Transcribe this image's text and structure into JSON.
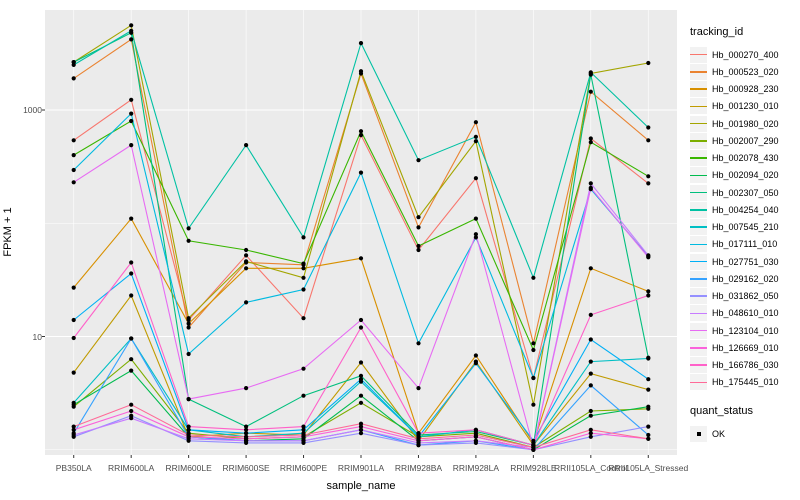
{
  "colors": {
    "panel_bg": "#EBEBEB",
    "grid_major": "#FFFFFF",
    "grid_minor": "#F7F7F7",
    "axis_text": "#4D4D4D",
    "tick_mark": "#333333",
    "point": "#000000",
    "legend_key_bg": "#F2F2F2"
  },
  "chart_data": {
    "type": "line",
    "xlabel": "sample_name",
    "ylabel": "FPKM + 1",
    "y_scale": "log10",
    "y_ticks": [
      10,
      1000
    ],
    "y_minor_ticks": [
      1,
      100
    ],
    "ylim": [
      0.9,
      7700
    ],
    "grid": true,
    "legend_position": "right",
    "legend_title": "tracking_id",
    "quant_legend": {
      "title": "quant_status",
      "items": [
        "OK"
      ]
    },
    "categories": [
      "PB350LA",
      "RRIM600LA",
      "RRIM600LE",
      "RRIM600SE",
      "RRIM600PE",
      "RRIM901LA",
      "RRIM928BA",
      "RRIM928LA",
      "RRIM928LE",
      "RRII105LA_Control",
      "RRII105LA_Stressed"
    ],
    "series": [
      {
        "name": "Hb_000270_400",
        "color": "#F8766D",
        "values": [
          540,
          1230,
          14,
          52,
          14.5,
          600,
          58,
          250,
          4.3,
          560,
          225
        ]
      },
      {
        "name": "Hb_000523_020",
        "color": "#EA8331",
        "values": [
          1900,
          4200,
          12,
          45,
          43,
          2100,
          92,
          780,
          8.7,
          1450,
          540
        ]
      },
      {
        "name": "Hb_000928_230",
        "color": "#D89000",
        "values": [
          27,
          110,
          13,
          40,
          40,
          49,
          1.4,
          6.8,
          1.15,
          40,
          25
        ]
      },
      {
        "name": "Hb_001230_010",
        "color": "#C09B00",
        "values": [
          4.8,
          23,
          1.3,
          1.4,
          1.35,
          5.9,
          1.2,
          6.0,
          1.1,
          4.7,
          3.4
        ]
      },
      {
        "name": "Hb_001980_020",
        "color": "#A3A500",
        "values": [
          2650,
          5600,
          14.5,
          46,
          33,
          2200,
          113,
          530,
          2.5,
          2100,
          2600
        ]
      },
      {
        "name": "Hb_002007_290",
        "color": "#7CAE00",
        "values": [
          2.4,
          6.3,
          1.4,
          1.25,
          1.3,
          2.6,
          1.3,
          1.4,
          1.05,
          2.2,
          2.3
        ]
      },
      {
        "name": "Hb_002078_430",
        "color": "#39B600",
        "values": [
          400,
          800,
          70,
          58,
          44,
          650,
          63,
          110,
          7.6,
          520,
          260
        ]
      },
      {
        "name": "Hb_002094_020",
        "color": "#00BB4E",
        "values": [
          2.5,
          5.0,
          1.3,
          1.2,
          1.25,
          3.0,
          1.2,
          1.3,
          1.0,
          2.0,
          2.4
        ]
      },
      {
        "name": "Hb_002307_050",
        "color": "#00BF7D",
        "values": [
          2650,
          4800,
          2.8,
          1.6,
          3.0,
          4.5,
          1.35,
          1.45,
          1.1,
          2050,
          6.5
        ]
      },
      {
        "name": "Hb_004254_040",
        "color": "#00C1A3",
        "values": [
          2500,
          5000,
          90,
          490,
          75,
          3900,
          360,
          580,
          33,
          2150,
          700
        ]
      },
      {
        "name": "Hb_007545_210",
        "color": "#00BFC4",
        "values": [
          2.6,
          9.6,
          1.5,
          1.3,
          1.4,
          4.0,
          1.3,
          1.5,
          1.1,
          6.0,
          6.4
        ]
      },
      {
        "name": "Hb_017111_010",
        "color": "#00BAE0",
        "values": [
          295,
          930,
          7,
          20,
          26,
          280,
          8.7,
          75,
          4.3,
          200,
          51
        ]
      },
      {
        "name": "Hb_027751_030",
        "color": "#00B0F6",
        "values": [
          14,
          36,
          1.5,
          1.4,
          1.5,
          4.2,
          1.3,
          5.8,
          1.2,
          9.4,
          4.2
        ]
      },
      {
        "name": "Hb_029162_020",
        "color": "#35A2FF",
        "values": [
          1.4,
          9.6,
          1.3,
          1.2,
          1.2,
          1.5,
          1.1,
          1.2,
          1.0,
          3.7,
          1.35
        ]
      },
      {
        "name": "Hb_031862_050",
        "color": "#9590FF",
        "values": [
          1.3,
          2.0,
          1.2,
          1.15,
          1.15,
          1.4,
          1.1,
          1.15,
          1.0,
          1.3,
          1.6
        ]
      },
      {
        "name": "Hb_048610_010",
        "color": "#C77CFF",
        "values": [
          1.35,
          1.9,
          1.25,
          1.2,
          1.2,
          1.5,
          1.15,
          1.2,
          1.05,
          225,
          52
        ]
      },
      {
        "name": "Hb_123104_010",
        "color": "#E76BF3",
        "values": [
          230,
          490,
          2.8,
          3.5,
          5.2,
          14,
          3.5,
          80,
          1.05,
          205,
          50
        ]
      },
      {
        "name": "Hb_126669_010",
        "color": "#FA62DB",
        "values": [
          1.5,
          2.2,
          1.3,
          1.25,
          1.3,
          1.6,
          1.2,
          1.3,
          1.0,
          1.4,
          1.25
        ]
      },
      {
        "name": "Hb_166786_030",
        "color": "#FF61C9",
        "values": [
          9.7,
          45,
          1.6,
          1.5,
          1.6,
          12,
          1.4,
          1.5,
          1.1,
          15.5,
          23
        ]
      },
      {
        "name": "Hb_175445_010",
        "color": "#FF6A98",
        "values": [
          1.6,
          2.5,
          1.35,
          1.3,
          1.35,
          1.7,
          1.25,
          1.35,
          1.05,
          1.5,
          1.25
        ]
      }
    ]
  }
}
